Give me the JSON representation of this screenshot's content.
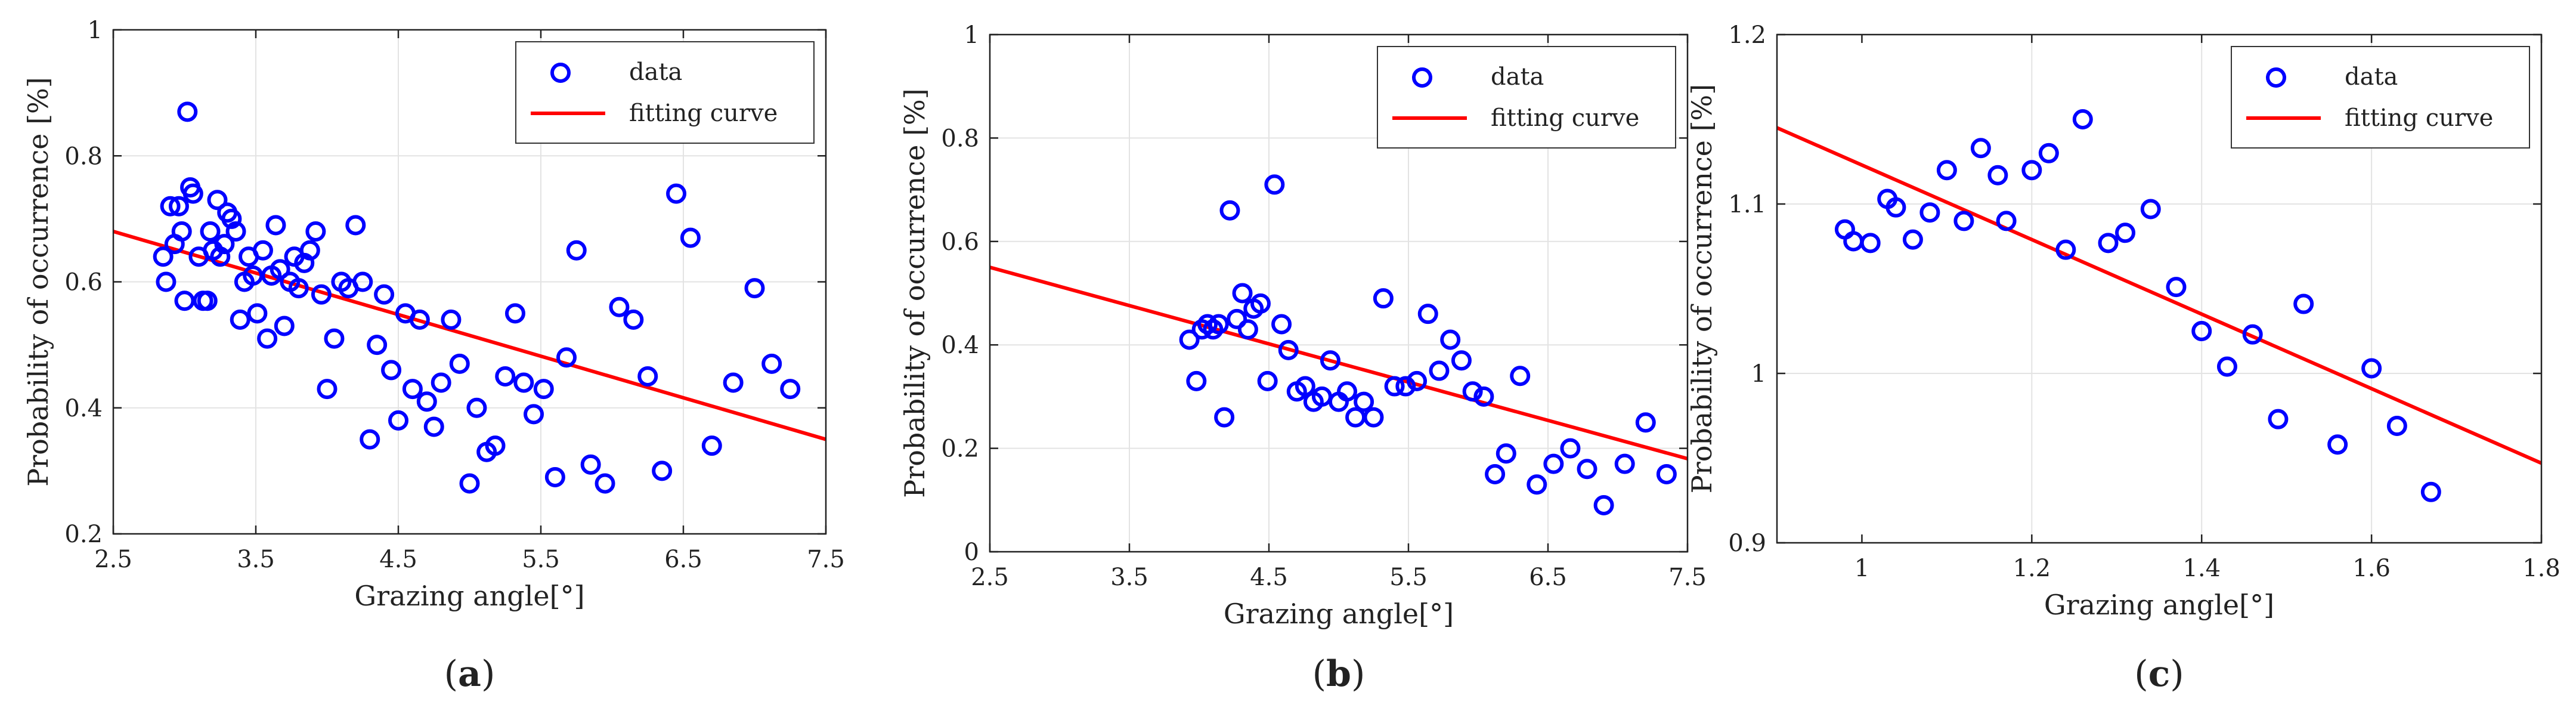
{
  "chart_data": [
    {
      "type": "scatter",
      "panel_label": "a",
      "xlabel": "Grazing angle[°]",
      "ylabel": "Probability of occurrence [%]",
      "xlim": [
        2.5,
        7.5
      ],
      "ylim": [
        0.2,
        1.0
      ],
      "xticks": [
        2.5,
        3.5,
        4.5,
        5.5,
        6.5,
        7.5
      ],
      "xtick_labels": [
        "2.5",
        "3.5",
        "4.5",
        "5.5",
        "6.5",
        "7.5"
      ],
      "yticks": [
        0.2,
        0.4,
        0.6,
        0.8,
        1.0
      ],
      "ytick_labels": [
        "0.2",
        "0.4",
        "0.6",
        "0.8",
        "1"
      ],
      "grid": true,
      "legend": {
        "position": "top-right",
        "entries": [
          "data",
          "fitting curve"
        ]
      },
      "series": [
        {
          "name": "data",
          "kind": "scatter",
          "color": "#0000ff",
          "points": [
            [
              2.85,
              0.64
            ],
            [
              2.87,
              0.6
            ],
            [
              2.9,
              0.72
            ],
            [
              2.93,
              0.66
            ],
            [
              2.96,
              0.72
            ],
            [
              2.98,
              0.68
            ],
            [
              3.0,
              0.57
            ],
            [
              3.02,
              0.87
            ],
            [
              3.04,
              0.75
            ],
            [
              3.06,
              0.74
            ],
            [
              3.1,
              0.64
            ],
            [
              3.13,
              0.57
            ],
            [
              3.16,
              0.57
            ],
            [
              3.18,
              0.68
            ],
            [
              3.2,
              0.65
            ],
            [
              3.23,
              0.73
            ],
            [
              3.25,
              0.64
            ],
            [
              3.28,
              0.66
            ],
            [
              3.3,
              0.71
            ],
            [
              3.33,
              0.7
            ],
            [
              3.36,
              0.68
            ],
            [
              3.39,
              0.54
            ],
            [
              3.42,
              0.6
            ],
            [
              3.45,
              0.64
            ],
            [
              3.48,
              0.61
            ],
            [
              3.51,
              0.55
            ],
            [
              3.55,
              0.65
            ],
            [
              3.58,
              0.51
            ],
            [
              3.61,
              0.61
            ],
            [
              3.64,
              0.69
            ],
            [
              3.67,
              0.62
            ],
            [
              3.7,
              0.53
            ],
            [
              3.74,
              0.6
            ],
            [
              3.77,
              0.64
            ],
            [
              3.8,
              0.59
            ],
            [
              3.84,
              0.63
            ],
            [
              3.88,
              0.65
            ],
            [
              3.92,
              0.68
            ],
            [
              3.96,
              0.58
            ],
            [
              4.0,
              0.43
            ],
            [
              4.05,
              0.51
            ],
            [
              4.1,
              0.6
            ],
            [
              4.15,
              0.59
            ],
            [
              4.2,
              0.69
            ],
            [
              4.25,
              0.6
            ],
            [
              4.3,
              0.35
            ],
            [
              4.35,
              0.5
            ],
            [
              4.4,
              0.58
            ],
            [
              4.45,
              0.46
            ],
            [
              4.5,
              0.38
            ],
            [
              4.55,
              0.55
            ],
            [
              4.6,
              0.43
            ],
            [
              4.65,
              0.54
            ],
            [
              4.7,
              0.41
            ],
            [
              4.75,
              0.37
            ],
            [
              4.8,
              0.44
            ],
            [
              4.87,
              0.54
            ],
            [
              4.93,
              0.47
            ],
            [
              5.0,
              0.28
            ],
            [
              5.05,
              0.4
            ],
            [
              5.12,
              0.33
            ],
            [
              5.18,
              0.34
            ],
            [
              5.25,
              0.45
            ],
            [
              5.32,
              0.55
            ],
            [
              5.38,
              0.44
            ],
            [
              5.45,
              0.39
            ],
            [
              5.52,
              0.43
            ],
            [
              5.6,
              0.29
            ],
            [
              5.68,
              0.48
            ],
            [
              5.75,
              0.65
            ],
            [
              5.85,
              0.31
            ],
            [
              5.95,
              0.28
            ],
            [
              6.05,
              0.56
            ],
            [
              6.15,
              0.54
            ],
            [
              6.25,
              0.45
            ],
            [
              6.35,
              0.3
            ],
            [
              6.45,
              0.74
            ],
            [
              6.55,
              0.67
            ],
            [
              6.7,
              0.34
            ],
            [
              6.85,
              0.44
            ],
            [
              7.0,
              0.59
            ],
            [
              7.12,
              0.47
            ],
            [
              7.25,
              0.43
            ]
          ]
        },
        {
          "name": "fitting curve",
          "kind": "line",
          "color": "#ff0000",
          "points": [
            [
              2.5,
              0.68
            ],
            [
              7.5,
              0.35
            ]
          ]
        }
      ]
    },
    {
      "type": "scatter",
      "panel_label": "b",
      "xlabel": "Grazing angle[°]",
      "ylabel": "Probability of occurrence [%]",
      "xlim": [
        2.5,
        7.5
      ],
      "ylim": [
        0.0,
        1.0
      ],
      "xticks": [
        2.5,
        3.5,
        4.5,
        5.5,
        6.5,
        7.5
      ],
      "xtick_labels": [
        "2.5",
        "3.5",
        "4.5",
        "5.5",
        "6.5",
        "7.5"
      ],
      "yticks": [
        0.0,
        0.2,
        0.4,
        0.6,
        0.8,
        1.0
      ],
      "ytick_labels": [
        "0",
        "0.2",
        "0.4",
        "0.6",
        "0.8",
        "1"
      ],
      "grid": true,
      "legend": {
        "position": "top-right",
        "entries": [
          "data",
          "fitting curve"
        ]
      },
      "series": [
        {
          "name": "data",
          "kind": "scatter",
          "color": "#0000ff",
          "points": [
            [
              3.93,
              0.41
            ],
            [
              3.98,
              0.33
            ],
            [
              4.02,
              0.43
            ],
            [
              4.06,
              0.44
            ],
            [
              4.1,
              0.43
            ],
            [
              4.14,
              0.44
            ],
            [
              4.18,
              0.26
            ],
            [
              4.22,
              0.66
            ],
            [
              4.27,
              0.45
            ],
            [
              4.31,
              0.5
            ],
            [
              4.35,
              0.43
            ],
            [
              4.39,
              0.47
            ],
            [
              4.44,
              0.48
            ],
            [
              4.49,
              0.33
            ],
            [
              4.54,
              0.71
            ],
            [
              4.59,
              0.44
            ],
            [
              4.64,
              0.39
            ],
            [
              4.7,
              0.31
            ],
            [
              4.76,
              0.32
            ],
            [
              4.82,
              0.29
            ],
            [
              4.88,
              0.3
            ],
            [
              4.94,
              0.37
            ],
            [
              5.0,
              0.29
            ],
            [
              5.06,
              0.31
            ],
            [
              5.12,
              0.26
            ],
            [
              5.18,
              0.29
            ],
            [
              5.25,
              0.26
            ],
            [
              5.32,
              0.49
            ],
            [
              5.4,
              0.32
            ],
            [
              5.48,
              0.32
            ],
            [
              5.56,
              0.33
            ],
            [
              5.64,
              0.46
            ],
            [
              5.72,
              0.35
            ],
            [
              5.8,
              0.41
            ],
            [
              5.88,
              0.37
            ],
            [
              5.96,
              0.31
            ],
            [
              6.04,
              0.3
            ],
            [
              6.12,
              0.15
            ],
            [
              6.2,
              0.19
            ],
            [
              6.3,
              0.34
            ],
            [
              6.42,
              0.13
            ],
            [
              6.54,
              0.17
            ],
            [
              6.66,
              0.2
            ],
            [
              6.78,
              0.16
            ],
            [
              6.9,
              0.09
            ],
            [
              7.05,
              0.17
            ],
            [
              7.2,
              0.25
            ],
            [
              7.35,
              0.15
            ]
          ]
        },
        {
          "name": "fitting curve",
          "kind": "line",
          "color": "#ff0000",
          "points": [
            [
              2.5,
              0.55
            ],
            [
              7.5,
              0.18
            ]
          ]
        }
      ]
    },
    {
      "type": "scatter",
      "panel_label": "c",
      "xlabel": "Grazing angle[°]",
      "ylabel": "Probability of occurrence [%]",
      "xlim": [
        0.9,
        1.8
      ],
      "ylim": [
        0.9,
        1.2
      ],
      "xticks": [
        1.0,
        1.2,
        1.4,
        1.6,
        1.8
      ],
      "xtick_labels": [
        "1",
        "1.2",
        "1.4",
        "1.6",
        "1.8"
      ],
      "yticks": [
        0.9,
        1.0,
        1.1,
        1.2
      ],
      "ytick_labels": [
        "0.9",
        "1",
        "1.1",
        "1.2"
      ],
      "grid": true,
      "legend": {
        "position": "top-right",
        "entries": [
          "data",
          "fitting curve"
        ]
      },
      "series": [
        {
          "name": "data",
          "kind": "scatter",
          "color": "#0000ff",
          "points": [
            [
              0.98,
              1.085
            ],
            [
              0.99,
              1.078
            ],
            [
              1.01,
              1.077
            ],
            [
              1.03,
              1.103
            ],
            [
              1.04,
              1.098
            ],
            [
              1.06,
              1.079
            ],
            [
              1.08,
              1.095
            ],
            [
              1.1,
              1.12
            ],
            [
              1.12,
              1.09
            ],
            [
              1.14,
              1.133
            ],
            [
              1.16,
              1.117
            ],
            [
              1.17,
              1.09
            ],
            [
              1.2,
              1.12
            ],
            [
              1.22,
              1.13
            ],
            [
              1.24,
              1.073
            ],
            [
              1.26,
              1.15
            ],
            [
              1.29,
              1.077
            ],
            [
              1.31,
              1.083
            ],
            [
              1.34,
              1.097
            ],
            [
              1.37,
              1.051
            ],
            [
              1.4,
              1.025
            ],
            [
              1.43,
              1.004
            ],
            [
              1.46,
              1.023
            ],
            [
              1.49,
              0.973
            ],
            [
              1.52,
              1.041
            ],
            [
              1.56,
              0.958
            ],
            [
              1.6,
              1.003
            ],
            [
              1.63,
              0.969
            ],
            [
              1.67,
              0.93
            ]
          ]
        },
        {
          "name": "fitting curve",
          "kind": "line",
          "color": "#ff0000",
          "points": [
            [
              0.9,
              1.145
            ],
            [
              1.8,
              0.947
            ]
          ]
        }
      ]
    }
  ]
}
